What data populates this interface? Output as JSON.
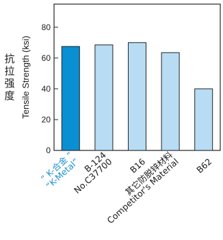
{
  "chart_data": {
    "type": "bar",
    "ylabel": "Tensile Strength (ksi)",
    "ylabel_cn": [
      "抗",
      "拉",
      "强",
      "度"
    ],
    "ylim": [
      0,
      95
    ],
    "yticks": [
      0,
      20,
      40,
      60,
      80
    ],
    "grid": false,
    "categories": [
      {
        "lines": [
          "“ K-合金 ”",
          "“K-Metal”"
        ],
        "value": 67.5,
        "color": "#0a8fd2",
        "label_color": "#1f8fd0"
      },
      {
        "lines": [
          "B-124",
          "No.C37700"
        ],
        "value": 68.5,
        "color": "#b7dcf3",
        "label_color": "#1a1a1a"
      },
      {
        "lines": [
          "B16"
        ],
        "value": 70,
        "color": "#b7dcf3",
        "label_color": "#1a1a1a"
      },
      {
        "lines": [
          "其它防脱锌材料",
          "Competitor's Material"
        ],
        "value": 63.5,
        "color": "#b7dcf3",
        "label_color": "#1a1a1a"
      },
      {
        "lines": [
          "B62"
        ],
        "value": 40,
        "color": "#b7dcf3",
        "label_color": "#1a1a1a"
      }
    ]
  }
}
